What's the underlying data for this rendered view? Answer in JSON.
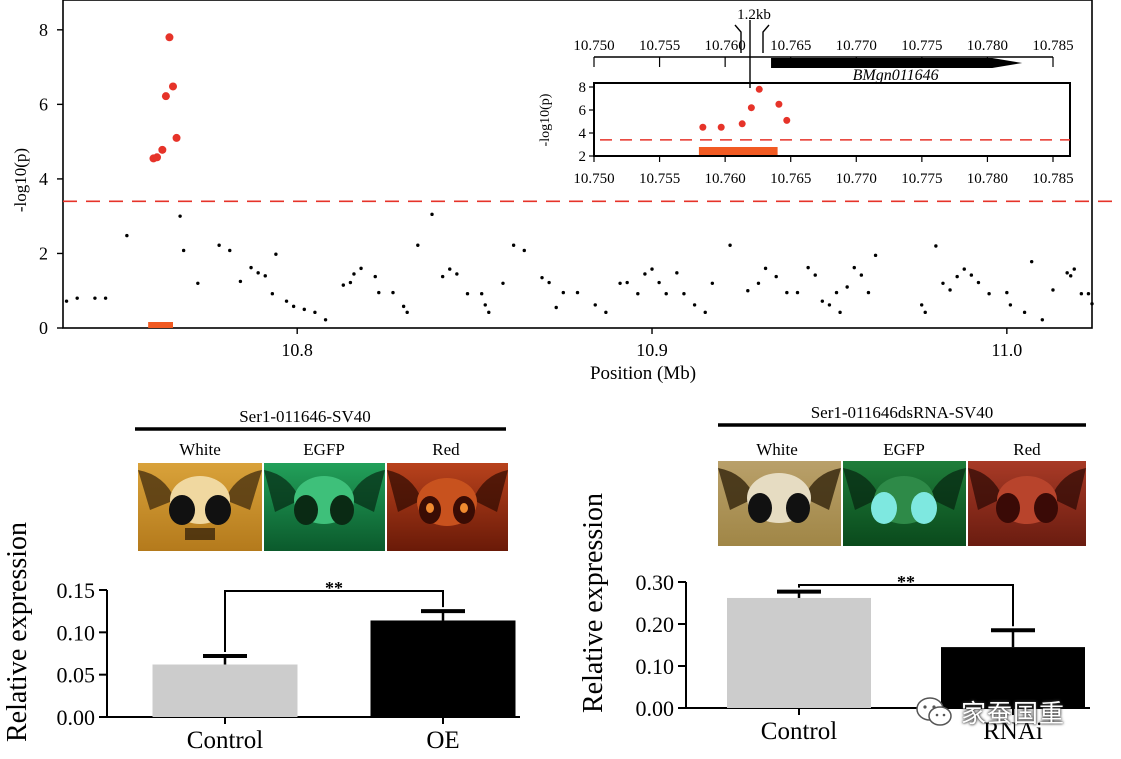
{
  "colors": {
    "sig_points": "#e63329",
    "threshold_line": "#e63329",
    "bar_gene_region": "#f15a22",
    "bar_control": "#cccccc",
    "bar_treatment": "#000000",
    "gene_arrow": "#000000"
  },
  "watermark": {
    "label": "家蚕国重",
    "icon": "wechat-icon"
  },
  "chart_data": [
    {
      "type": "scatter",
      "name": "manhattan-main",
      "xlabel": "Position (Mb)",
      "ylabel": "-log10(p)",
      "xlim": [
        10.734,
        11.024
      ],
      "ylim": [
        0,
        8.8
      ],
      "xticks": [
        "10.8",
        "10.9",
        "11.0"
      ],
      "yticks": [
        "0",
        "2",
        "4",
        "6",
        "8"
      ],
      "threshold": 3.4,
      "highlight_region": [
        10.758,
        10.765
      ],
      "significant": [
        [
          10.7595,
          4.55
        ],
        [
          10.7605,
          4.58
        ],
        [
          10.762,
          4.78
        ],
        [
          10.763,
          6.22
        ],
        [
          10.764,
          7.8
        ],
        [
          10.765,
          6.48
        ],
        [
          10.766,
          5.1
        ]
      ],
      "points": [
        [
          10.735,
          0.72
        ],
        [
          10.738,
          0.8
        ],
        [
          10.743,
          0.8
        ],
        [
          10.746,
          0.8
        ],
        [
          10.752,
          2.48
        ],
        [
          10.767,
          3.0
        ],
        [
          10.768,
          2.08
        ],
        [
          10.772,
          1.2
        ],
        [
          10.778,
          2.22
        ],
        [
          10.781,
          2.08
        ],
        [
          10.784,
          1.25
        ],
        [
          10.787,
          1.62
        ],
        [
          10.789,
          1.48
        ],
        [
          10.791,
          1.4
        ],
        [
          10.793,
          0.92
        ],
        [
          10.794,
          1.98
        ],
        [
          10.797,
          0.72
        ],
        [
          10.799,
          0.58
        ],
        [
          10.802,
          0.5
        ],
        [
          10.805,
          0.42
        ],
        [
          10.808,
          0.22
        ],
        [
          10.813,
          1.15
        ],
        [
          10.815,
          1.22
        ],
        [
          10.816,
          1.45
        ],
        [
          10.818,
          1.6
        ],
        [
          10.822,
          1.38
        ],
        [
          10.823,
          0.95
        ],
        [
          10.827,
          0.95
        ],
        [
          10.83,
          0.58
        ],
        [
          10.831,
          0.42
        ],
        [
          10.834,
          2.22
        ],
        [
          10.838,
          3.05
        ],
        [
          10.841,
          1.38
        ],
        [
          10.843,
          1.58
        ],
        [
          10.845,
          1.45
        ],
        [
          10.848,
          0.92
        ],
        [
          10.852,
          0.92
        ],
        [
          10.853,
          0.62
        ],
        [
          10.854,
          0.42
        ],
        [
          10.858,
          1.2
        ],
        [
          10.861,
          2.22
        ],
        [
          10.864,
          2.08
        ],
        [
          10.869,
          1.35
        ],
        [
          10.871,
          1.22
        ],
        [
          10.873,
          0.55
        ],
        [
          10.875,
          0.95
        ],
        [
          10.879,
          0.95
        ],
        [
          10.884,
          0.62
        ],
        [
          10.887,
          0.42
        ],
        [
          10.891,
          1.2
        ],
        [
          10.893,
          1.22
        ],
        [
          10.896,
          0.92
        ],
        [
          10.898,
          1.45
        ],
        [
          10.9,
          1.58
        ],
        [
          10.902,
          1.22
        ],
        [
          10.904,
          0.92
        ],
        [
          10.907,
          1.48
        ],
        [
          10.909,
          0.92
        ],
        [
          10.912,
          0.62
        ],
        [
          10.915,
          0.42
        ],
        [
          10.917,
          1.2
        ],
        [
          10.922,
          2.22
        ],
        [
          10.927,
          1.0
        ],
        [
          10.93,
          1.2
        ],
        [
          10.932,
          1.6
        ],
        [
          10.935,
          1.38
        ],
        [
          10.938,
          0.95
        ],
        [
          10.941,
          0.95
        ],
        [
          10.944,
          1.62
        ],
        [
          10.946,
          1.42
        ],
        [
          10.948,
          0.72
        ],
        [
          10.95,
          0.62
        ],
        [
          10.952,
          0.95
        ],
        [
          10.953,
          0.42
        ],
        [
          10.955,
          1.1
        ],
        [
          10.957,
          1.62
        ],
        [
          10.959,
          1.42
        ],
        [
          10.961,
          0.95
        ],
        [
          10.963,
          1.95
        ],
        [
          10.976,
          0.62
        ],
        [
          10.977,
          0.42
        ],
        [
          10.98,
          2.2
        ],
        [
          10.982,
          1.2
        ],
        [
          10.984,
          1.02
        ],
        [
          10.986,
          1.38
        ],
        [
          10.988,
          1.58
        ],
        [
          10.99,
          1.42
        ],
        [
          10.992,
          1.22
        ],
        [
          10.995,
          0.92
        ],
        [
          11.0,
          0.95
        ],
        [
          11.001,
          0.62
        ],
        [
          11.005,
          0.42
        ],
        [
          11.007,
          1.78
        ],
        [
          11.01,
          0.22
        ],
        [
          11.013,
          1.02
        ],
        [
          11.017,
          1.48
        ],
        [
          11.018,
          1.4
        ],
        [
          11.019,
          1.58
        ],
        [
          11.021,
          0.92
        ],
        [
          11.023,
          0.92
        ],
        [
          11.024,
          0.65
        ]
      ]
    },
    {
      "type": "scatter",
      "name": "manhattan-inset",
      "ylabel": "-log10(p)",
      "xlim": [
        10.75,
        10.785
      ],
      "ylim": [
        2,
        8
      ],
      "xticks": [
        "10.750",
        "10.755",
        "10.760",
        "10.765",
        "10.770",
        "10.775",
        "10.780",
        "10.785"
      ],
      "yticks": [
        "2",
        "4",
        "6",
        "8"
      ],
      "threshold": 3.4,
      "gene": {
        "name": "BMgn011646",
        "start": 10.7635,
        "end": 10.7825
      },
      "region_label": "1.2kb",
      "highlight_region": [
        10.758,
        10.764
      ],
      "significant": [
        [
          10.7583,
          4.5
        ],
        [
          10.7597,
          4.5
        ],
        [
          10.7613,
          4.8
        ],
        [
          10.762,
          6.2
        ],
        [
          10.7626,
          7.8
        ],
        [
          10.7641,
          6.5
        ],
        [
          10.7647,
          5.1
        ]
      ]
    },
    {
      "type": "bar",
      "name": "overexpression",
      "title": "Ser1-011646-SV40",
      "panel_labels": [
        "White",
        "EGFP",
        "Red"
      ],
      "categories": [
        "Control",
        "OE"
      ],
      "values": [
        0.062,
        0.114
      ],
      "errors": [
        0.01,
        0.011
      ],
      "ylabel": "Relative expression",
      "ylim": [
        0,
        0.15
      ],
      "yticks": [
        "0.00",
        "0.05",
        "0.10",
        "0.15"
      ],
      "significance": "**"
    },
    {
      "type": "bar",
      "name": "rnai",
      "title": "Ser1-011646dsRNA-SV40",
      "panel_labels": [
        "White",
        "EGFP",
        "Red"
      ],
      "categories": [
        "Control",
        "RNAi"
      ],
      "values": [
        0.262,
        0.145
      ],
      "errors": [
        0.015,
        0.04
      ],
      "ylabel": "Relative expression",
      "ylim": [
        0,
        0.3
      ],
      "yticks": [
        "0.00",
        "0.10",
        "0.20",
        "0.30"
      ],
      "significance": "**"
    }
  ]
}
